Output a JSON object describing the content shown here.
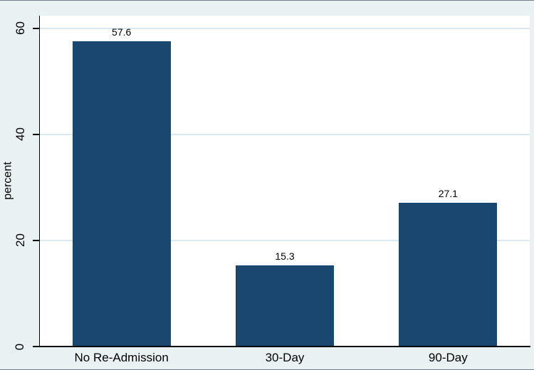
{
  "chart_data": {
    "type": "bar",
    "title": "",
    "categories": [
      "No Re-Admission",
      "30-Day",
      "90-Day"
    ],
    "values": [
      57.6,
      15.3,
      27.1
    ],
    "value_labels": [
      "57.6",
      "15.3",
      "27.1"
    ],
    "xlabel": "",
    "ylabel": "percent",
    "yticks": [
      0,
      20,
      40,
      60
    ],
    "ytick_labels": [
      "0",
      "20",
      "40",
      "60"
    ],
    "ylim": [
      0,
      62.4
    ],
    "grid": true,
    "legend_position": "none",
    "colors": {
      "bar": "#1a476f",
      "plot_background": "#ffffff",
      "graph_background": "#eaf1f3",
      "gridline": "#dce9f2",
      "axis": "#000000",
      "text": "#000000",
      "edge_frame": "rgba(35,50,66,0.6)"
    }
  }
}
